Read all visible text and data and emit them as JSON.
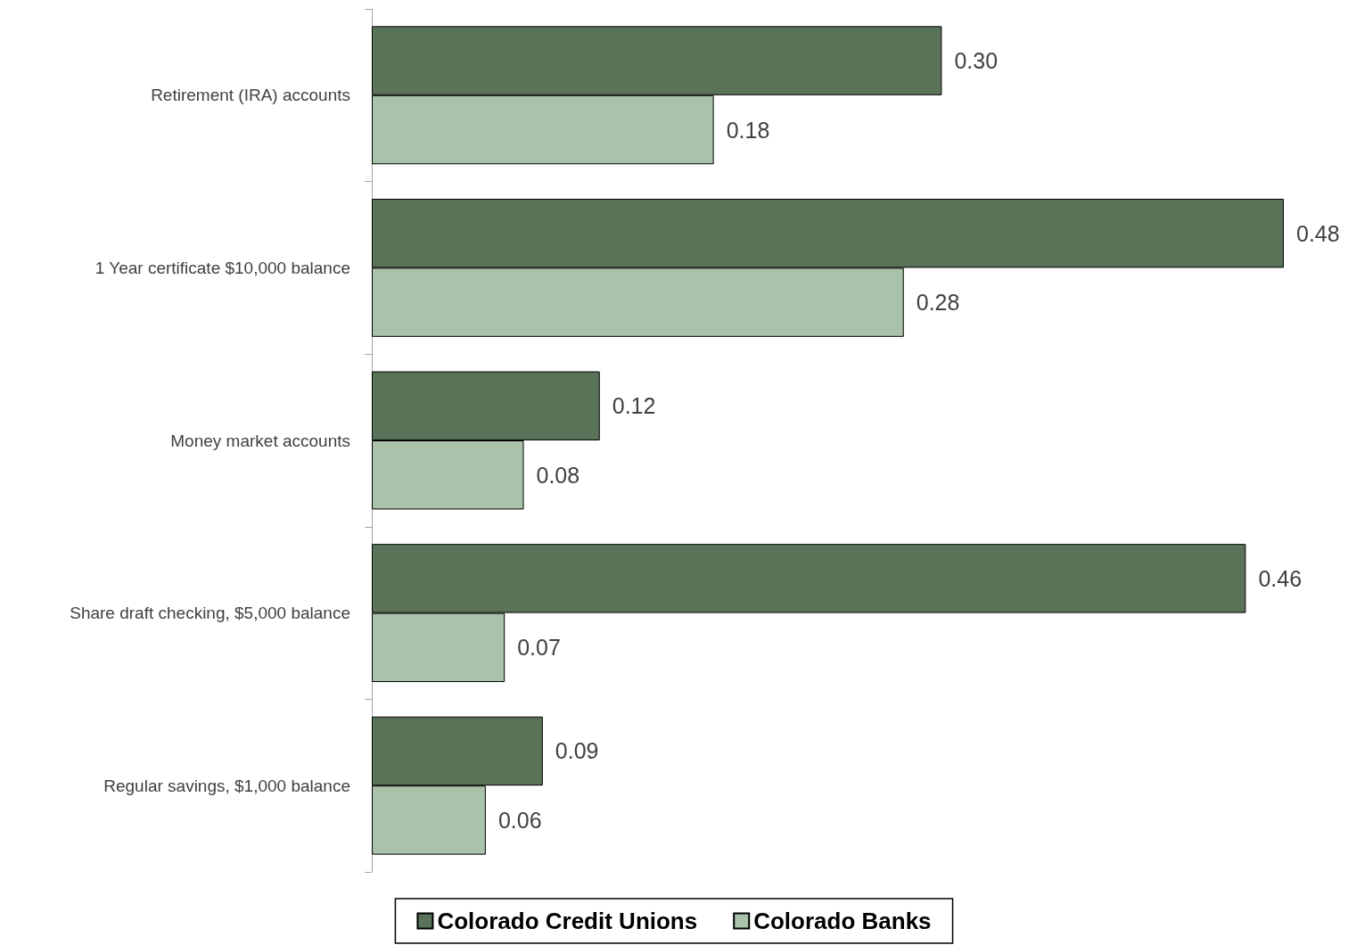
{
  "chart_data": {
    "type": "bar",
    "orientation": "horizontal",
    "categories": [
      "Retirement (IRA) accounts",
      "1 Year certificate $10,000 balance",
      "Money market accounts",
      "Share draft checking, $5,000 balance",
      "Regular savings, $1,000 balance"
    ],
    "series": [
      {
        "name": "Colorado Credit Unions",
        "color": "#5a7358",
        "values": [
          0.3,
          0.48,
          0.12,
          0.46,
          0.09
        ],
        "value_labels": [
          "0.30",
          "0.48",
          "0.12",
          "0.46",
          "0.09"
        ]
      },
      {
        "name": "Colorado Banks",
        "color": "#a9c2a9",
        "values": [
          0.18,
          0.28,
          0.08,
          0.07,
          0.06
        ],
        "value_labels": [
          "0.18",
          "0.28",
          "0.08",
          "0.07",
          "0.06"
        ]
      }
    ],
    "legend": "bottom",
    "tick_labels": "y"
  }
}
